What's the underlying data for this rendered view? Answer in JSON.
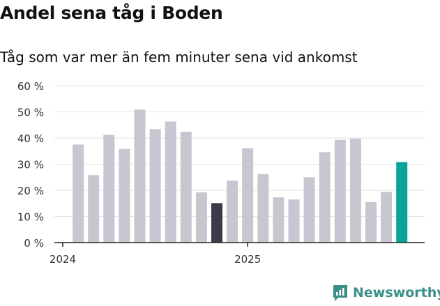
{
  "header": {
    "title": "Andel sena tåg i Boden",
    "subtitle": "Tåg som var mer än fem minuter sena vid ankomst"
  },
  "brand": {
    "name": "Newsworthy",
    "icon": "bar-chart-logo-icon",
    "color": "#3a8f8a"
  },
  "colors": {
    "default": "#c8c7d1",
    "highlight_dark": "#3d3b47",
    "highlight_latest": "#0aa39a",
    "grid": "#e2e2e2",
    "axis": "#222222"
  },
  "chart_data": {
    "type": "bar",
    "title": "Andel sena tåg i Boden",
    "subtitle": "Tåg som var mer än fem minuter sena vid ankomst",
    "xlabel": "",
    "ylabel": "",
    "ylim": [
      0,
      60
    ],
    "y_ticks": [
      "0 %",
      "10 %",
      "20 %",
      "30 %",
      "40 %",
      "50 %",
      "60 %"
    ],
    "x_tick_labels": [
      {
        "label": "2024",
        "category": "2024-01"
      },
      {
        "label": "2025",
        "category": "2025-01"
      }
    ],
    "categories": [
      "2024-01",
      "2024-02",
      "2024-03",
      "2024-04",
      "2024-05",
      "2024-06",
      "2024-07",
      "2024-08",
      "2024-09",
      "2024-10",
      "2024-11",
      "2024-12",
      "2025-01",
      "2025-02",
      "2025-03",
      "2025-04",
      "2025-05",
      "2025-06",
      "2025-07",
      "2025-08",
      "2025-09",
      "2025-10",
      "2025-11",
      "2025-12"
    ],
    "values": [
      null,
      37.5,
      25.8,
      41.2,
      35.8,
      50.9,
      43.4,
      46.3,
      42.4,
      19.2,
      15.1,
      23.7,
      36.1,
      26.2,
      17.3,
      16.5,
      25.0,
      34.6,
      39.3,
      39.8,
      15.5,
      19.4,
      30.8,
      null
    ],
    "highlights": {
      "2024-11": "dark",
      "2025-11": "latest"
    },
    "grid": true,
    "legend": "none"
  }
}
